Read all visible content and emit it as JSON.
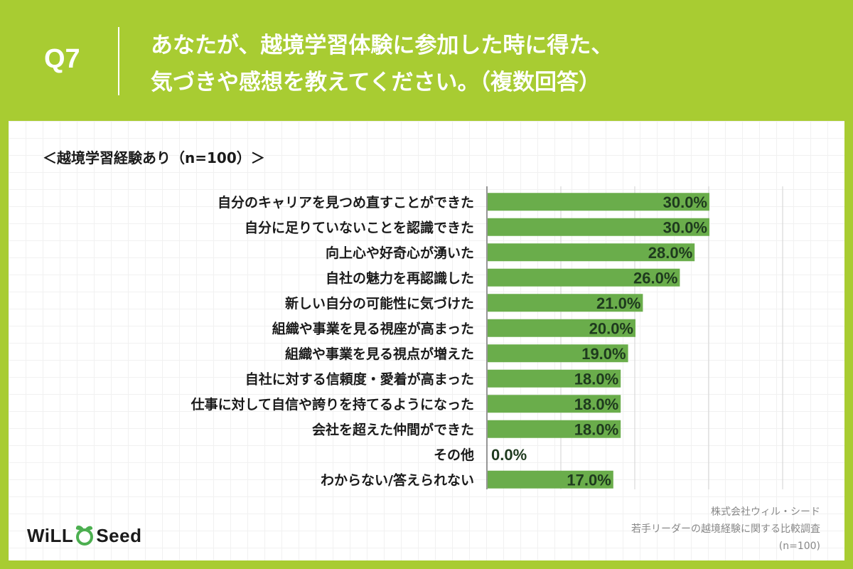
{
  "header": {
    "qnum": "Q7",
    "question_line1": "あなたが、越境学習体験に参加した時に得た、",
    "question_line2": "気づきや感想を教えてください。（複数回答）"
  },
  "chart_data": {
    "type": "bar",
    "orientation": "horizontal",
    "subtitle": "＜越境学習経験あり（n=100）＞",
    "categories": [
      "自分のキャリアを見つめ直すことができた",
      "自分に足りていないことを認識できた",
      "向上心や好奇心が湧いた",
      "自社の魅力を再認識した",
      "新しい自分の可能性に気づけた",
      "組織や事業を見る視座が高まった",
      "組織や事業を見る視点が増えた",
      "自社に対する信頼度・愛着が高まった",
      "仕事に対して自信や誇りを持てるようになった",
      "会社を超えた仲間ができた",
      "その他",
      "わからない/答えられない"
    ],
    "values": [
      30.0,
      30.0,
      28.0,
      26.0,
      21.0,
      20.0,
      19.0,
      18.0,
      18.0,
      18.0,
      0.0,
      17.0
    ],
    "value_labels": [
      "30.0%",
      "30.0%",
      "28.0%",
      "26.0%",
      "21.0%",
      "20.0%",
      "19.0%",
      "18.0%",
      "18.0%",
      "18.0%",
      "0.0%",
      "17.0%"
    ],
    "xlim": [
      0,
      30
    ],
    "grid": true,
    "bar_color": "#6aad4b"
  },
  "logo": {
    "text_left": "WiLL",
    "text_right": "Seed",
    "accent": "#4caf50"
  },
  "source": {
    "line1": "株式会社ウィル・シード",
    "line2": "若手リーダーの越境経験に関する比較調査",
    "line3": "(n=100)"
  },
  "colors": {
    "background": "#a8cc32",
    "panel": "#ffffff",
    "bar": "#6aad4b",
    "value_text": "#1e3a1e"
  }
}
